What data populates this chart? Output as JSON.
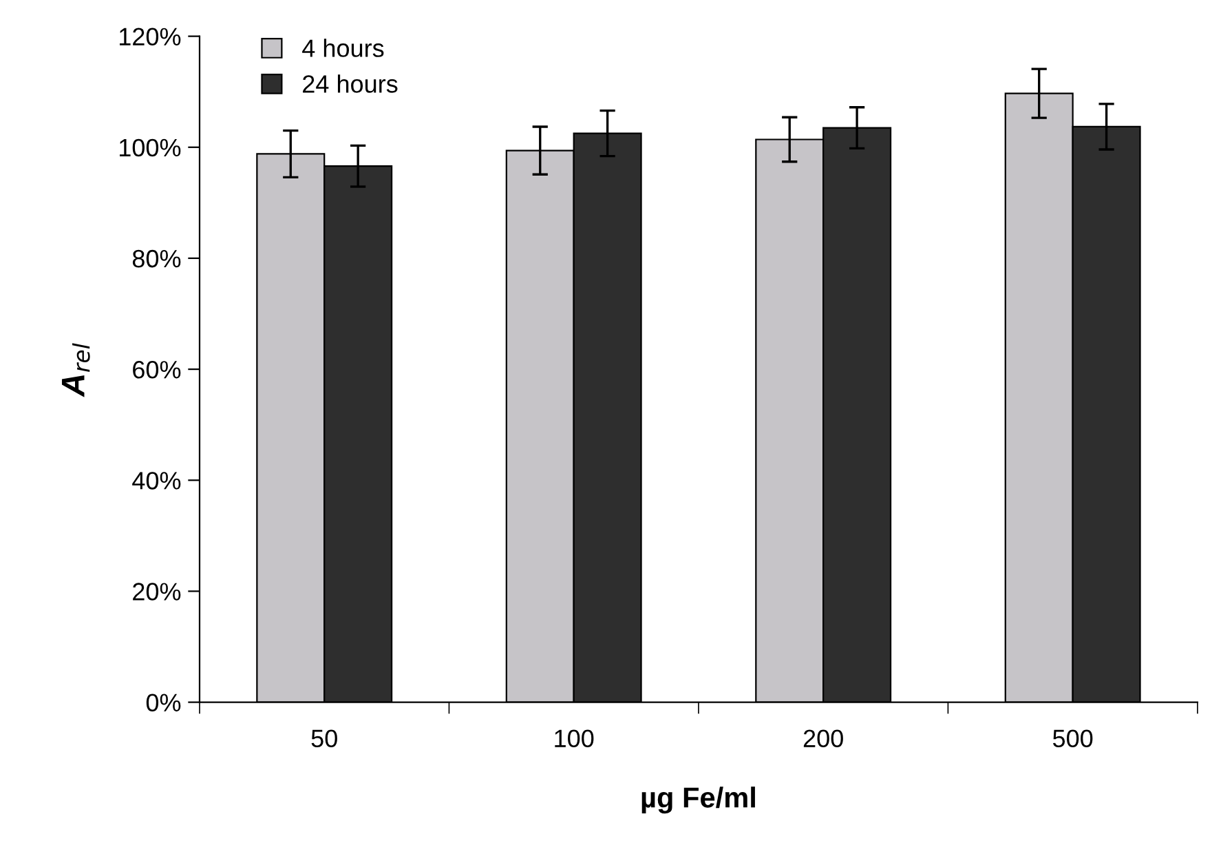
{
  "chart_data": {
    "type": "bar",
    "xlabel": "µg Fe/ml",
    "ylabel": "A$_{rel}$",
    "categories": [
      "50",
      "100",
      "200",
      "500"
    ],
    "series": [
      {
        "name": "4 hours",
        "color": "#c6c4c8",
        "values": [
          98.8,
          99.4,
          101.4,
          109.7
        ],
        "errors": [
          4.2,
          4.3,
          4.0,
          4.4
        ]
      },
      {
        "name": "24 hours",
        "color": "#2e2e2e",
        "values": [
          96.6,
          102.5,
          103.5,
          103.7
        ],
        "errors": [
          3.7,
          4.1,
          3.7,
          4.1
        ]
      }
    ],
    "ylim": [
      0,
      120
    ],
    "yticks": [
      {
        "value": 0,
        "label": "0%"
      },
      {
        "value": 20,
        "label": "20%"
      },
      {
        "value": 40,
        "label": "40%"
      },
      {
        "value": 60,
        "label": "60%"
      },
      {
        "value": 80,
        "label": "80%"
      },
      {
        "value": 100,
        "label": "100%"
      },
      {
        "value": 120,
        "label": "120%"
      }
    ],
    "grid": false,
    "legend": "top left"
  }
}
